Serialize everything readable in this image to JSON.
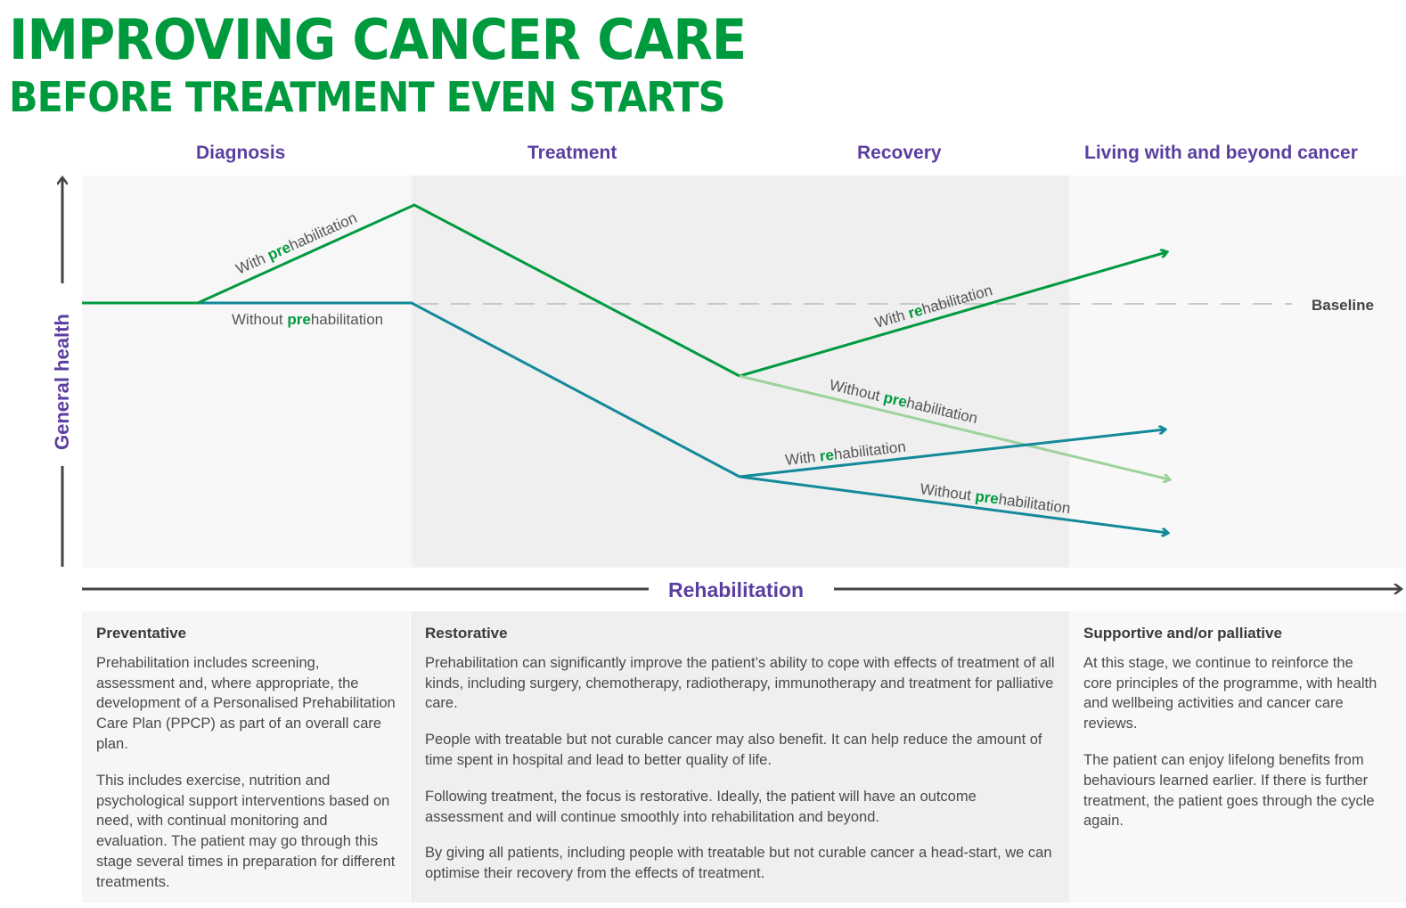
{
  "title": {
    "line1": "IMPROVING CANCER CARE",
    "line2": "BEFORE TREATMENT EVEN STARTS"
  },
  "phases": [
    "Diagnosis",
    "Treatment",
    "Recovery",
    "Living with and beyond cancer"
  ],
  "y_axis_label": "General health",
  "x_axis_label": "Rehabilitation",
  "baseline_label": "Baseline",
  "line_labels": {
    "with_pre": {
      "a": "With ",
      "b": "pre",
      "c": "habilitation"
    },
    "without_pre": {
      "a": "Without ",
      "b": "pre",
      "c": "habilitation"
    },
    "with_re": {
      "a": "With ",
      "b": "re",
      "c": "habilitation"
    }
  },
  "colors": {
    "with_prehab": "#009a3e",
    "without_prehab": "#13899a",
    "light_green": "#9dd39a",
    "purple": "#5b3fa0"
  },
  "boxes": [
    {
      "heading": "Preventative",
      "paragraphs": [
        "Prehabilitation includes screening, assessment and, where appropriate, the development of a Personalised Prehabilitation Care Plan (PPCP) as part of an overall care plan.",
        "This includes exercise, nutrition and psychological support interventions based on need, with continual monitoring and evaluation. The patient may go through this stage several times in preparation for different treatments."
      ]
    },
    {
      "heading": "Restorative",
      "paragraphs": [
        "Prehabilitation can significantly improve the patient’s ability to cope with effects of treatment of all kinds, including surgery, chemotherapy, radiotherapy, immunotherapy and treatment for palliative care.",
        "People with treatable but not curable cancer may also benefit. It can help reduce the amount of time spent in hospital and lead to better quality of life.",
        "Following treatment, the focus is restorative. Ideally, the patient will have an outcome assessment and will continue smoothly into rehabilitation and beyond.",
        "By giving all patients, including people with treatable but not curable cancer a head-start, we can optimise their recovery from the effects of treatment."
      ]
    },
    {
      "heading": "Supportive and/or palliative",
      "paragraphs": [
        "At this stage, we continue to reinforce the core principles of the programme, with health and wellbeing activities and cancer care reviews.",
        "The patient can enjoy lifelong benefits from behaviours learned earlier. If there is further treatment, the patient goes through the cycle again."
      ]
    }
  ]
}
